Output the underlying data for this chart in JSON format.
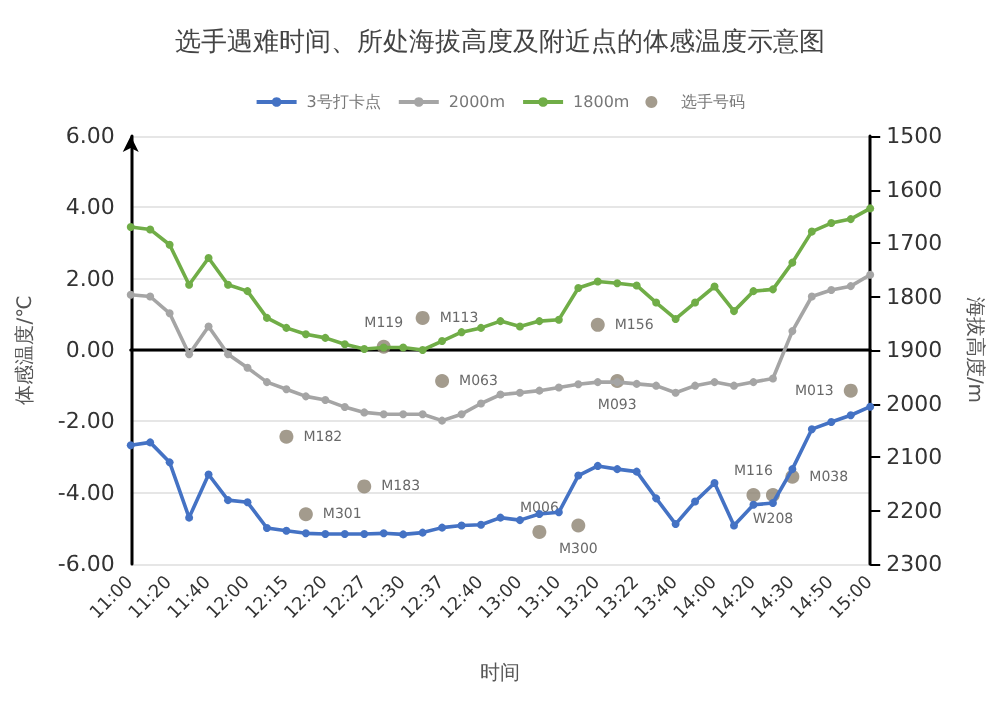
{
  "chart_data": {
    "type": "line",
    "title": "选手遇难时间、所处海拔高度及附近点的体感温度示意图",
    "xlabel": "时间",
    "ylabel": "体感温度/℃",
    "y2label": "海拔高度/m",
    "categories": [
      "11:00",
      null,
      "11:20",
      null,
      "11:40",
      null,
      "12:00",
      null,
      "12:15",
      null,
      "12:20",
      null,
      "12:27",
      null,
      "12:30",
      null,
      "12:37",
      null,
      "12:40",
      null,
      "13:00",
      null,
      "13:10",
      null,
      "13:20",
      null,
      "13:22",
      null,
      "13:40",
      null,
      "14:00",
      null,
      "14:20",
      null,
      "14:30",
      null,
      "14:50",
      null,
      "15:00"
    ],
    "ylim": [
      -6,
      6
    ],
    "yticks": [
      {
        "value": -6,
        "label": "-6.00"
      },
      {
        "value": -4,
        "label": "-4.00"
      },
      {
        "value": -2,
        "label": "-2.00"
      },
      {
        "value": 0,
        "label": "0.00"
      },
      {
        "value": 2,
        "label": "2.00"
      },
      {
        "value": 4,
        "label": "4.00"
      },
      {
        "value": 6,
        "label": "6.00"
      }
    ],
    "y2lim": [
      2300,
      1500
    ],
    "y2ticks": [
      1500,
      1600,
      1700,
      1800,
      1900,
      2000,
      2100,
      2200,
      2300
    ],
    "grid": "y",
    "legend": "top",
    "marker": "circle",
    "series": [
      {
        "name": "3号打卡点",
        "color": "#4472c4",
        "values": [
          -2.67,
          -2.59,
          -3.15,
          -4.7,
          -3.49,
          -4.21,
          -4.27,
          -4.99,
          -5.07,
          -5.14,
          -5.16,
          -5.16,
          -5.16,
          -5.14,
          -5.17,
          -5.12,
          -4.98,
          -4.92,
          -4.9,
          -4.7,
          -4.77,
          -4.6,
          -4.55,
          -3.52,
          -3.25,
          -3.34,
          -3.41,
          -4.16,
          -4.88,
          -4.25,
          -3.73,
          -4.92,
          -4.34,
          -4.29,
          -3.34,
          -2.22,
          -2.02,
          -1.83,
          -1.59
        ]
      },
      {
        "name": "2000m",
        "color": "#a5a5a5",
        "values": [
          1.55,
          1.5,
          1.03,
          -0.12,
          0.66,
          -0.12,
          -0.5,
          -0.9,
          -1.1,
          -1.3,
          -1.4,
          -1.6,
          -1.75,
          -1.8,
          -1.8,
          -1.8,
          -1.98,
          -1.8,
          -1.5,
          -1.25,
          -1.2,
          -1.14,
          -1.05,
          -0.96,
          -0.9,
          -0.9,
          -0.95,
          -1.0,
          -1.2,
          -1.0,
          -0.9,
          -1.0,
          -0.9,
          -0.8,
          0.53,
          1.5,
          1.68,
          1.79,
          2.11
        ]
      },
      {
        "name": "1800m",
        "color": "#70ad47",
        "values": [
          3.45,
          3.38,
          2.95,
          1.83,
          2.58,
          1.83,
          1.65,
          0.9,
          0.62,
          0.44,
          0.34,
          0.16,
          0.03,
          0.07,
          0.07,
          0.0,
          0.25,
          0.5,
          0.62,
          0.81,
          0.66,
          0.81,
          0.85,
          1.74,
          1.92,
          1.87,
          1.81,
          1.33,
          0.87,
          1.33,
          1.78,
          1.09,
          1.65,
          1.7,
          2.45,
          3.32,
          3.56,
          3.67,
          3.97
        ]
      },
      {
        "name": "选手号码",
        "type": "scatter",
        "axis": "y2",
        "color": "#8c8270",
        "values": [
          null,
          null,
          null,
          null,
          null,
          null,
          null,
          null,
          2062,
          2207,
          null,
          null,
          2155,
          1894,
          null,
          1840,
          1958,
          null,
          null,
          null,
          null,
          2240,
          null,
          2228,
          1853,
          1958,
          null,
          null,
          null,
          null,
          null,
          null,
          2171,
          2171,
          2137,
          null,
          null,
          1976,
          null
        ],
        "value_labels": [
          null,
          null,
          null,
          null,
          null,
          null,
          null,
          null,
          "M182",
          "M301",
          null,
          null,
          "M183",
          "M119",
          null,
          "M113",
          "M063",
          null,
          null,
          null,
          null,
          "M006",
          null,
          "M300",
          "M156",
          "M093",
          null,
          null,
          null,
          null,
          null,
          null,
          "M116",
          "W208",
          "M038",
          null,
          null,
          "M013",
          null
        ]
      }
    ]
  }
}
